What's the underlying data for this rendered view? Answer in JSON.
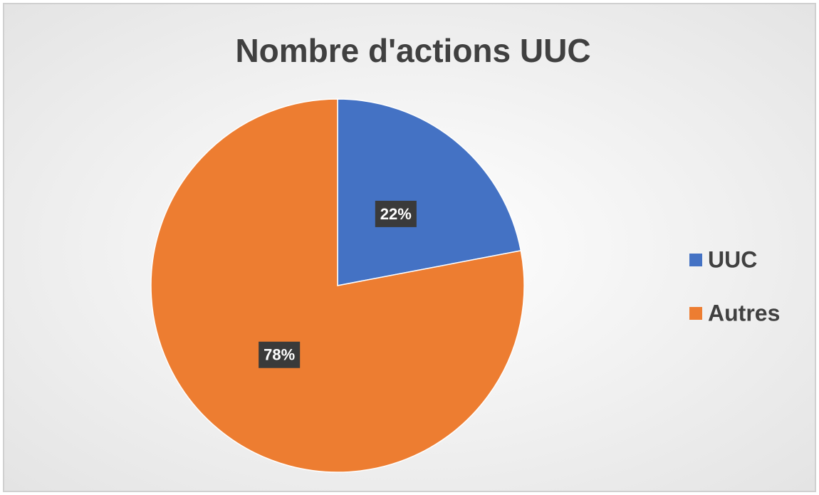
{
  "chart_data": {
    "type": "pie",
    "title": "Nombre d'actions UUC",
    "categories": [
      "UUC",
      "Autres"
    ],
    "values": [
      22,
      78
    ],
    "value_labels": [
      "22%",
      "78%"
    ],
    "colors": [
      "#4472c4",
      "#ed7d31"
    ],
    "legend": "right"
  }
}
